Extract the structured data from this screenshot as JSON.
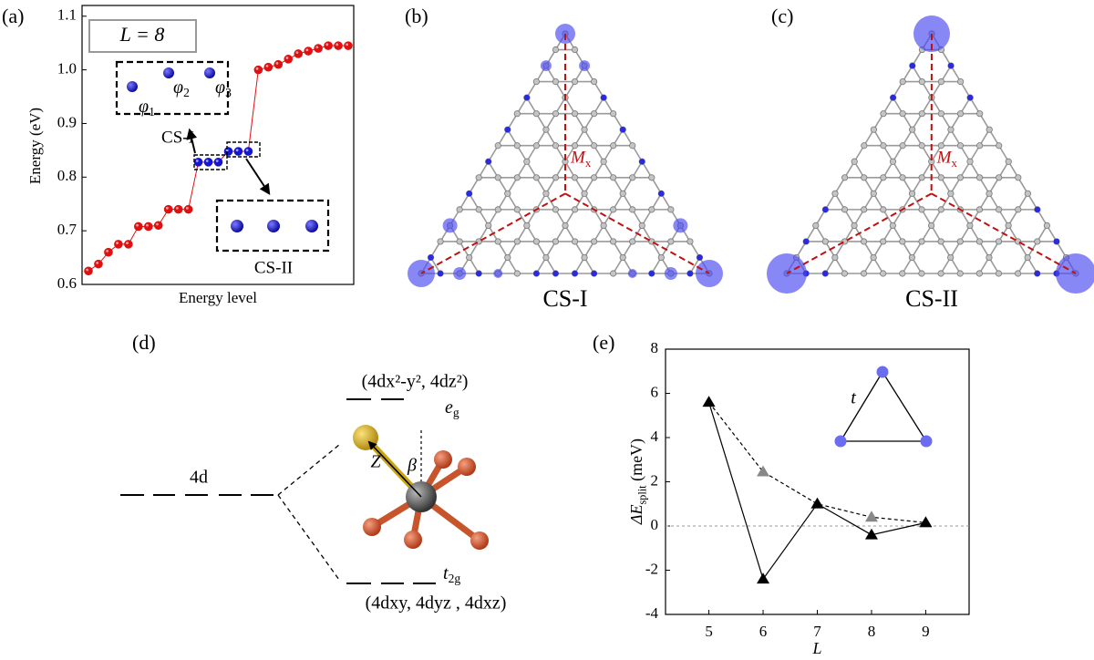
{
  "chart_data": [
    {
      "type": "line",
      "label": "(a)",
      "ylabel": "Energy (eV)",
      "xlabel": "Energy level",
      "ylim": [
        0.6,
        1.12
      ],
      "yticks": [
        0.6,
        0.7,
        0.8,
        0.9,
        {
          "value": 1.0,
          "label": "1.0"
        },
        1.1
      ],
      "series": [
        {
          "color": "#e01010",
          "values": [
            0.625,
            0.638,
            0.66,
            0.675,
            0.675,
            0.708,
            0.708,
            0.71,
            0.74,
            0.74,
            0.74,
            0.828,
            0.828,
            0.828,
            0.848,
            0.848,
            0.848,
            1.0,
            1.005,
            1.01,
            1.02,
            1.03,
            1.035,
            1.04,
            1.045,
            1.045,
            1.045
          ],
          "point_colors": [
            "#e01010",
            "#e01010",
            "#e01010",
            "#e01010",
            "#e01010",
            "#e01010",
            "#e01010",
            "#e01010",
            "#e01010",
            "#e01010",
            "#e01010",
            "#1515d0",
            "#1515d0",
            "#1515d0",
            "#1515d0",
            "#1515d0",
            "#1515d0",
            "#e01010",
            "#e01010",
            "#e01010",
            "#e01010",
            "#e01010",
            "#e01010",
            "#e01010",
            "#e01010",
            "#e01010",
            "#e01010"
          ]
        }
      ],
      "box_label": "L = 8",
      "states": [
        {
          "main": "φ",
          "sub": "1"
        },
        {
          "main": "φ",
          "sub": "2"
        },
        {
          "main": "φ",
          "sub": "3"
        }
      ],
      "inset_labels": [
        "CS-I",
        "CS-II"
      ]
    },
    {
      "type": "line",
      "label": "(e)",
      "xlabel": "L",
      "ylabel": {
        "main": "ΔE",
        "sub": "split",
        "unit": " (meV)"
      },
      "x": [
        5,
        6,
        7,
        8,
        9
      ],
      "xlim": [
        4.2,
        9.8
      ],
      "xticks": [
        5,
        6,
        7,
        8,
        9
      ],
      "ylim": [
        -4,
        8
      ],
      "yticks": [
        -4,
        -2,
        0,
        2,
        4,
        6,
        8
      ],
      "zero_line": true,
      "series": [
        {
          "color": "#888888",
          "line_style": "dashed",
          "marker": "triangle",
          "values": [
            5.6,
            2.45,
            1.0,
            0.4,
            0.15
          ]
        },
        {
          "color": "#000000",
          "line_style": "solid",
          "marker": "triangle",
          "values": [
            5.6,
            -2.4,
            1.0,
            -0.4,
            0.15
          ]
        }
      ],
      "inset_label": "t"
    }
  ],
  "lattice_panels": [
    {
      "label": "(b)",
      "caption": "CS-I",
      "axis_label": {
        "main": "M",
        "sub": "x"
      }
    },
    {
      "label": "(c)",
      "caption": "CS-II",
      "axis_label": {
        "main": "M",
        "sub": "x"
      }
    }
  ],
  "level_diagram": {
    "label": "(d)",
    "free_ion": "4d",
    "eg_orbitals": "(4dx²-y², 4dz²)",
    "eg": {
      "main": "e",
      "sub": "g"
    },
    "t2g": {
      "main": "t",
      "sub": "2g"
    },
    "t2g_orbitals": "(4dxy, 4dyz , 4dxz)",
    "axis": "Z",
    "angle": "β"
  }
}
